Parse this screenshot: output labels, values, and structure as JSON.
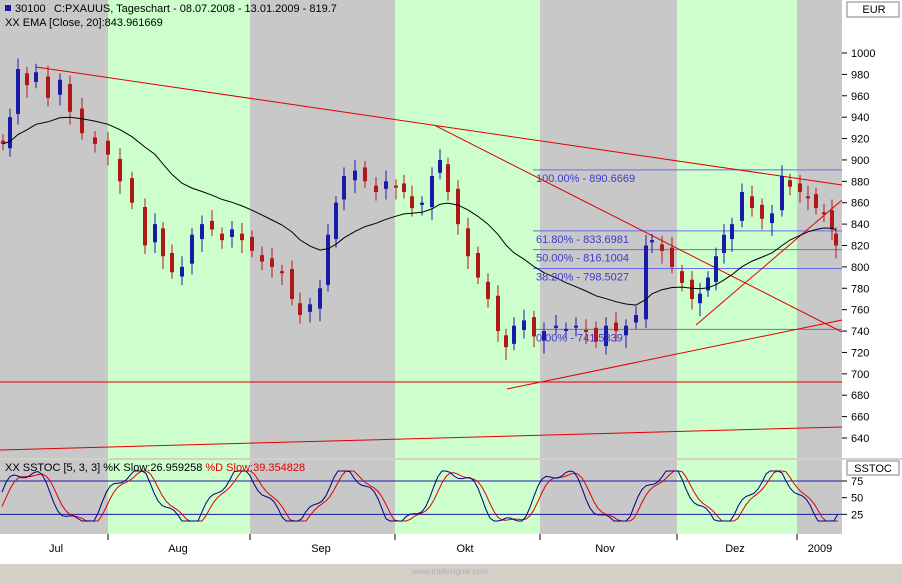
{
  "header": {
    "symbol_code": "30100",
    "title": "C:PXAUUS, Tageschart - 08.07.2008 - 13.01.2009 - 819.7",
    "ema_label": "EMA [Close, 20]:843.961669"
  },
  "price_panel": {
    "currency": "EUR",
    "y_ticks": [
      640,
      660,
      680,
      700,
      720,
      740,
      760,
      780,
      800,
      820,
      840,
      860,
      880,
      900,
      920,
      940,
      960,
      980,
      1000
    ]
  },
  "fib_levels": [
    {
      "label": "100.00% - 890.6669",
      "value": 890.6669
    },
    {
      "label": "61.80% - 833.6981",
      "value": 833.6981
    },
    {
      "label": "50.00% - 816.1004",
      "value": 816.1004
    },
    {
      "label": "38.20% - 798.5027",
      "value": 798.5027
    },
    {
      "label": "0.00% - 741.5339",
      "value": 741.5339
    }
  ],
  "stoch_panel": {
    "label": "SSTOC",
    "legend_prefix": "SSTOC [5, 3, 3]",
    "k_label": "%K Slow:26.959258",
    "d_label": "%D Slow:39.354828",
    "y_ticks": [
      25,
      50,
      75
    ]
  },
  "x_axis": {
    "labels": [
      "Jul",
      "Aug",
      "Sep",
      "Okt",
      "Nov",
      "Dez",
      "2009"
    ]
  },
  "watermark": "www.tradesignal.com",
  "colors": {
    "up_candle": "#1a1aa8",
    "down_candle": "#b01818",
    "ema": "#000000",
    "trendline": "#e00000",
    "fib_line": "#6a6af0",
    "band_green": "#ccffcc",
    "band_gray": "#c8c8c8",
    "k_line": "#000080",
    "d_line": "#e00000"
  },
  "chart_data": {
    "type": "candlestick",
    "x_range": [
      "2008-07-01",
      "2009-01-13"
    ],
    "ylim": [
      630,
      1020
    ],
    "series_close_sample": [
      {
        "date": "2008-07-08",
        "close": 915
      },
      {
        "date": "2008-07-15",
        "close": 985
      },
      {
        "date": "2008-07-22",
        "close": 965
      },
      {
        "date": "2008-08-01",
        "close": 905
      },
      {
        "date": "2008-08-08",
        "close": 860
      },
      {
        "date": "2008-08-15",
        "close": 800
      },
      {
        "date": "2008-08-22",
        "close": 830
      },
      {
        "date": "2008-09-01",
        "close": 830
      },
      {
        "date": "2008-09-05",
        "close": 805
      },
      {
        "date": "2008-09-11",
        "close": 750
      },
      {
        "date": "2008-09-18",
        "close": 840
      },
      {
        "date": "2008-09-22",
        "close": 890
      },
      {
        "date": "2008-09-30",
        "close": 880
      },
      {
        "date": "2008-10-03",
        "close": 850
      },
      {
        "date": "2008-10-10",
        "close": 885
      },
      {
        "date": "2008-10-17",
        "close": 830
      },
      {
        "date": "2008-10-24",
        "close": 765
      },
      {
        "date": "2008-10-27",
        "close": 725
      },
      {
        "date": "2008-11-04",
        "close": 750
      },
      {
        "date": "2008-11-13",
        "close": 730
      },
      {
        "date": "2008-11-21",
        "close": 745
      },
      {
        "date": "2008-11-26",
        "close": 825
      },
      {
        "date": "2008-12-02",
        "close": 790
      },
      {
        "date": "2008-12-08",
        "close": 775
      },
      {
        "date": "2008-12-12",
        "close": 815
      },
      {
        "date": "2008-12-17",
        "close": 860
      },
      {
        "date": "2008-12-24",
        "close": 850
      },
      {
        "date": "2008-12-30",
        "close": 880
      },
      {
        "date": "2009-01-06",
        "close": 855
      },
      {
        "date": "2009-01-13",
        "close": 819.7
      }
    ],
    "ema": {
      "period": 20,
      "last": 843.961669
    },
    "stochastic": {
      "k_last": 26.959258,
      "d_last": 39.354828,
      "levels": [
        25,
        75
      ]
    },
    "grid": false
  }
}
